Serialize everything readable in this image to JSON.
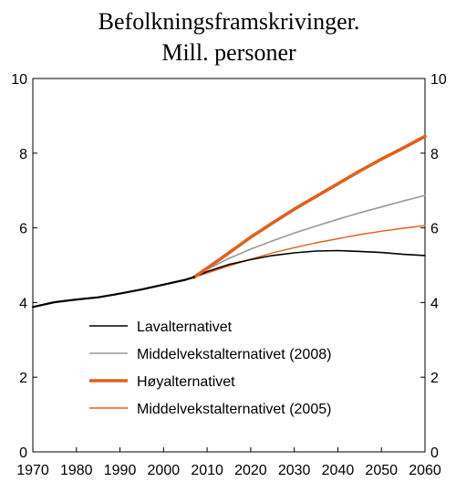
{
  "chart_data": {
    "type": "line",
    "title": "Befolkningsframskrivinger.",
    "subtitle": "Mill. personer",
    "xlabel": "",
    "ylabel": "",
    "xlim": [
      1970,
      2060
    ],
    "ylim": [
      0,
      10
    ],
    "x_ticks": [
      1970,
      1980,
      1990,
      2000,
      2010,
      2020,
      2030,
      2040,
      2050,
      2060
    ],
    "y_ticks": [
      0,
      2,
      4,
      6,
      8,
      10
    ],
    "grid": false,
    "legend_position": "bottom-center",
    "history": {
      "x": [
        1970,
        1975,
        1980,
        1985,
        1990,
        1995,
        2000,
        2005,
        2007
      ],
      "y": [
        3.88,
        4.01,
        4.08,
        4.14,
        4.24,
        4.35,
        4.48,
        4.61,
        4.68
      ]
    },
    "series": [
      {
        "name": "Lavalternativet",
        "color": "#000000",
        "width": 1.6,
        "x": [
          2007,
          2010,
          2015,
          2020,
          2025,
          2030,
          2035,
          2040,
          2045,
          2050,
          2055,
          2060
        ],
        "y": [
          4.68,
          4.83,
          5.02,
          5.15,
          5.26,
          5.33,
          5.38,
          5.39,
          5.37,
          5.34,
          5.29,
          5.26
        ]
      },
      {
        "name": "Middelvekstalternativet (2008)",
        "color": "#9a9a9a",
        "width": 1.6,
        "x": [
          2007,
          2010,
          2015,
          2020,
          2025,
          2030,
          2035,
          2040,
          2045,
          2050,
          2055,
          2060
        ],
        "y": [
          4.68,
          4.89,
          5.18,
          5.43,
          5.65,
          5.86,
          6.05,
          6.23,
          6.4,
          6.56,
          6.72,
          6.87
        ]
      },
      {
        "name": "Høyalternativet",
        "color": "#e0601e",
        "width": 3.6,
        "x": [
          2007,
          2010,
          2015,
          2020,
          2025,
          2030,
          2035,
          2040,
          2045,
          2050,
          2055,
          2060
        ],
        "y": [
          4.68,
          4.92,
          5.33,
          5.75,
          6.13,
          6.5,
          6.84,
          7.18,
          7.52,
          7.84,
          8.14,
          8.45
        ]
      },
      {
        "name": "Middelvekstalternativet (2005)",
        "color": "#e0601e",
        "width": 1.4,
        "x": [
          2007,
          2010,
          2015,
          2020,
          2025,
          2030,
          2035,
          2040,
          2045,
          2050,
          2055,
          2060
        ],
        "y": [
          4.68,
          4.79,
          4.98,
          5.16,
          5.33,
          5.47,
          5.6,
          5.71,
          5.82,
          5.91,
          5.99,
          6.06
        ]
      }
    ]
  }
}
